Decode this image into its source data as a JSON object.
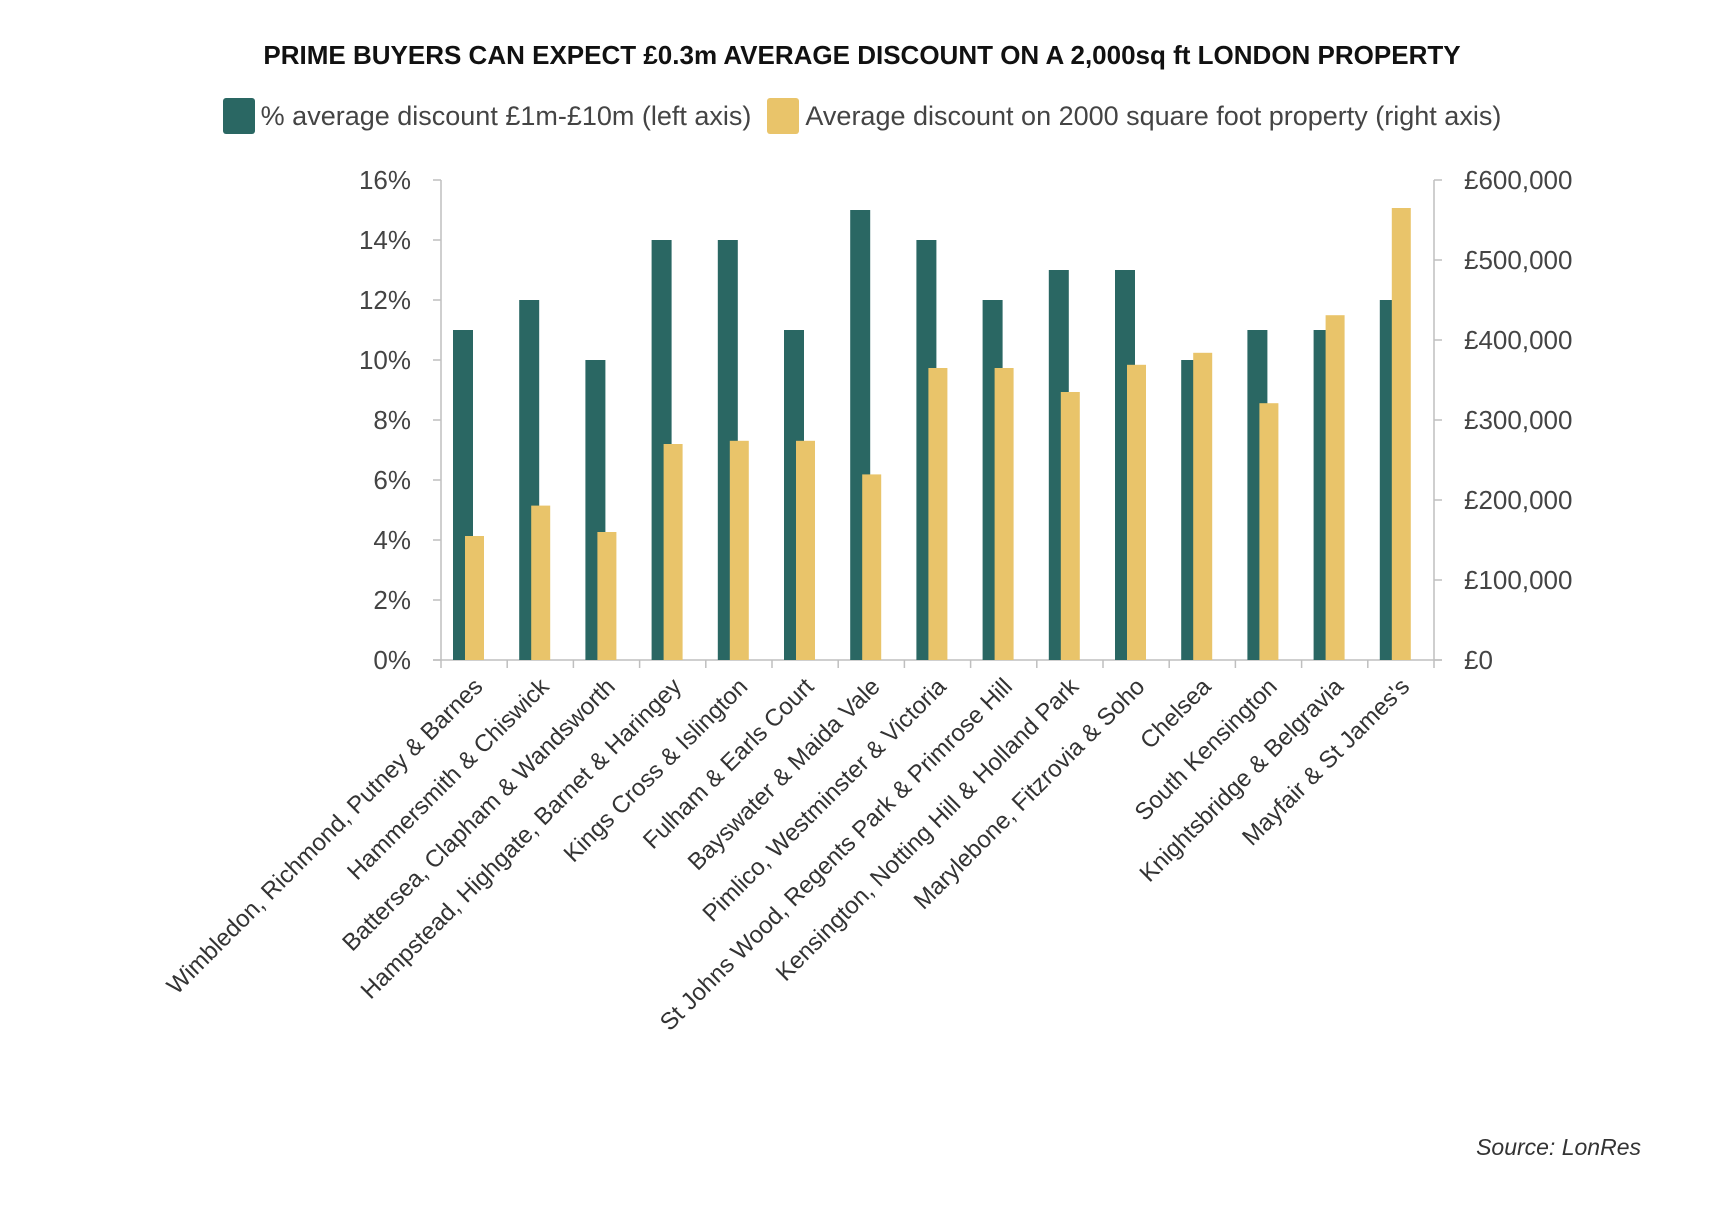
{
  "chart_data": {
    "type": "bar",
    "title": "PRIME BUYERS CAN EXPECT £0.3m AVERAGE DISCOUNT ON A 2,000sq ft LONDON PROPERTY",
    "categories": [
      "Wimbledon, Richmond, Putney & Barnes",
      "Hammersmith & Chiswick",
      "Battersea, Clapham & Wandsworth",
      "Hampstead, Highgate, Barnet & Haringey",
      "Kings Cross & Islington",
      "Fulham & Earls Court",
      "Bayswater & Maida Vale",
      "Pimlico, Westminster & Victoria",
      "St Johns Wood, Regents Park & Primrose Hill",
      "Kensington, Notting Hill & Holland Park",
      "Marylebone, Fitzrovia & Soho",
      "Chelsea",
      "South Kensington",
      "Knightsbridge & Belgravia",
      "Mayfair & St James's"
    ],
    "series": [
      {
        "name": "% average discount £1m-£10m (left axis)",
        "axis": "left",
        "color": "#2a6763",
        "values": [
          11,
          12,
          10,
          14,
          14,
          11,
          15,
          14,
          12,
          13,
          13,
          10,
          11,
          11,
          12
        ]
      },
      {
        "name": "Average discount on 2000 square foot property (right axis)",
        "axis": "right",
        "color": "#e9c46a",
        "values": [
          155000,
          193000,
          160000,
          270000,
          274000,
          274000,
          232000,
          365000,
          365000,
          335000,
          369000,
          384000,
          321000,
          431000,
          565000
        ]
      }
    ],
    "left_axis": {
      "ylim": [
        0,
        16
      ],
      "ticks": [
        0,
        2,
        4,
        6,
        8,
        10,
        12,
        14,
        16
      ],
      "tick_labels": [
        "0%",
        "2%",
        "4%",
        "6%",
        "8%",
        "10%",
        "12%",
        "14%",
        "16%"
      ]
    },
    "right_axis": {
      "ylim": [
        0,
        600000
      ],
      "ticks": [
        0,
        100000,
        200000,
        300000,
        400000,
        500000,
        600000
      ],
      "tick_labels": [
        "£0",
        "£100,000",
        "£200,000",
        "£300,000",
        "£400,000",
        "£500,000",
        "£600,000"
      ]
    },
    "legend_position": "top",
    "grid": false,
    "source": "Source: LonRes"
  }
}
